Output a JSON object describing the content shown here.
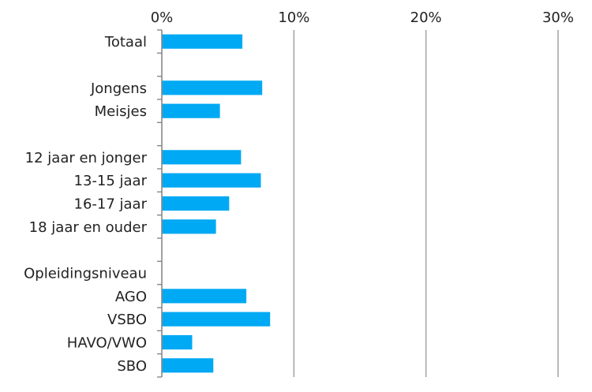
{
  "chart_data": {
    "type": "bar",
    "orientation": "horizontal",
    "title": "",
    "xlabel": "",
    "ylabel": "",
    "xlim": [
      0,
      30
    ],
    "x_ticks": [
      "0%",
      "10%",
      "20%",
      "30%"
    ],
    "x_tick_values": [
      0,
      10,
      20,
      30
    ],
    "axis_position": "top",
    "grid": true,
    "legend": "none",
    "bar_color": "#00A9F4",
    "grid_color": "#A6A6A6",
    "categories": [
      "Totaal",
      "",
      "Jongens",
      "Meisjes",
      "",
      "12 jaar en jonger",
      "13-15 jaar",
      "16-17 jaar",
      "18 jaar en ouder",
      "",
      "Opleidingsniveau",
      "AGO",
      "VSBO",
      "HAVO/VWO",
      "SBO"
    ],
    "values": [
      6.1,
      null,
      7.6,
      4.4,
      null,
      6.0,
      7.5,
      5.1,
      4.1,
      null,
      null,
      6.4,
      8.2,
      2.3,
      3.9
    ]
  }
}
